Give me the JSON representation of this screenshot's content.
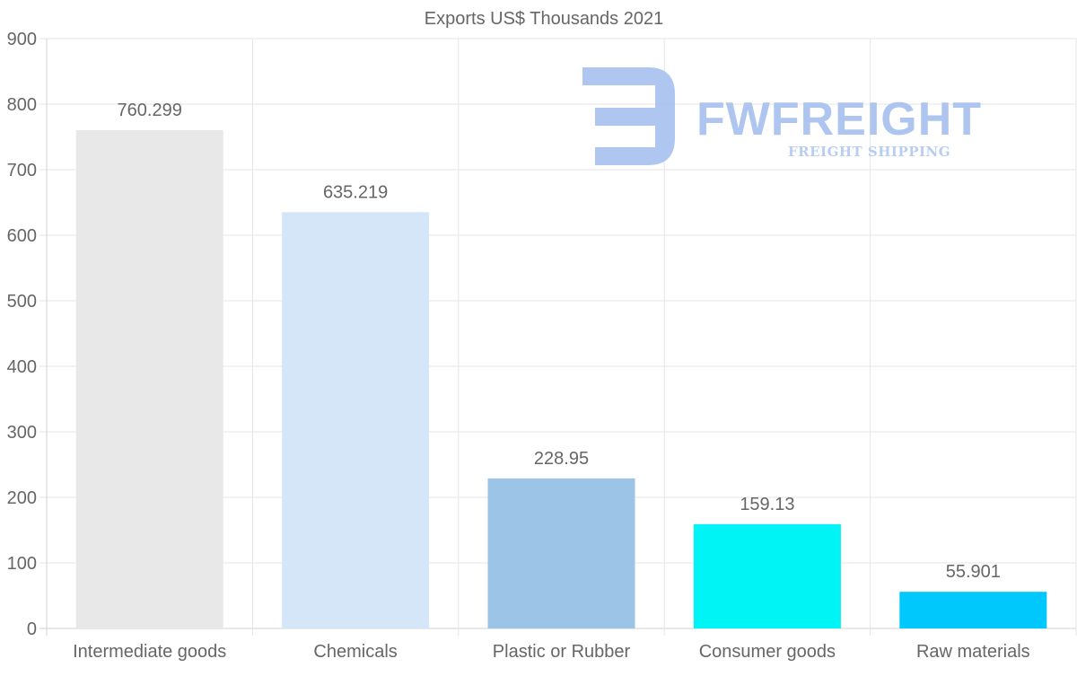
{
  "chart_data": {
    "type": "bar",
    "title": "Exports US$ Thousands 2021",
    "categories": [
      "Intermediate goods",
      "Chemicals",
      "Plastic or Rubber",
      "Consumer goods",
      "Raw materials"
    ],
    "values": [
      760.299,
      635.219,
      228.95,
      159.13,
      55.901
    ],
    "value_labels": [
      "760.299",
      "635.219",
      "228.95",
      "159.13",
      "55.901"
    ],
    "bar_colors": [
      "#e8e8e8",
      "#d6e6f9",
      "#9bc4e6",
      "#00f4f6",
      "#00c8fd"
    ],
    "xlabel": "",
    "ylabel": "",
    "ylim": [
      0,
      900
    ],
    "yticks": [
      0,
      100,
      200,
      300,
      400,
      500,
      600,
      700,
      800,
      900
    ],
    "grid": true
  },
  "watermark": {
    "name": "FWFREIGHT",
    "tagline": "FREIGHT SHIPPING",
    "color": "#aec6ef"
  }
}
